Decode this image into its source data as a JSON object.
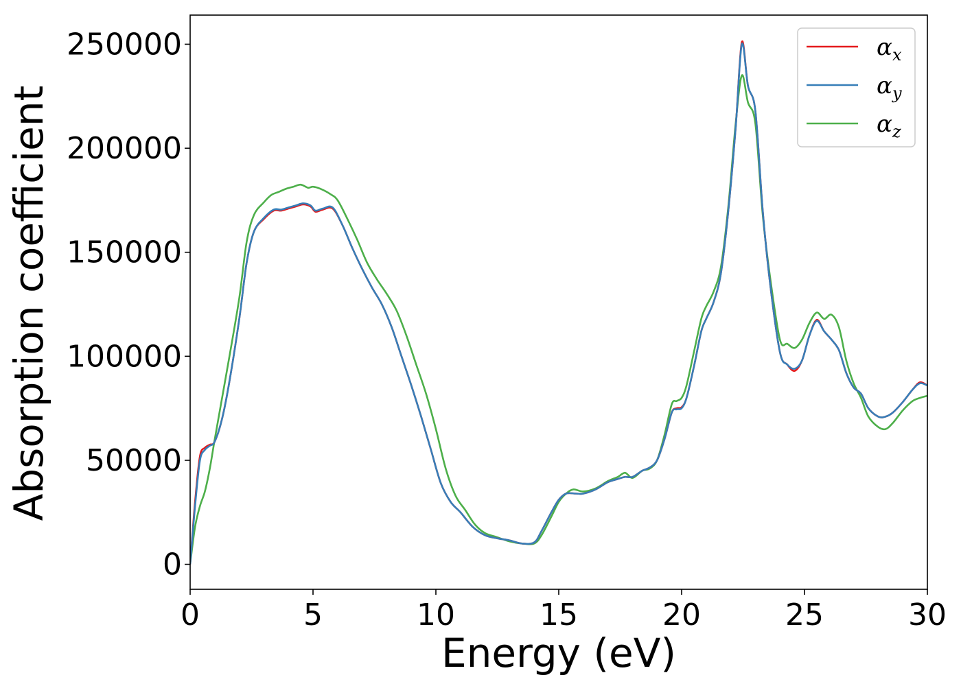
{
  "chart_data": {
    "type": "line",
    "xlabel": "Energy (eV)",
    "ylabel": "Absorption coefficient",
    "xlim": [
      0,
      30
    ],
    "ylim": [
      -12000,
      264000
    ],
    "xticks": [
      0,
      5,
      10,
      15,
      20,
      25,
      30
    ],
    "yticks": [
      0,
      50000,
      100000,
      150000,
      200000,
      250000
    ],
    "grid": false,
    "legend_position": "top-right",
    "series": [
      {
        "name": "α",
        "sub": "x",
        "color": "#e41a1c",
        "x": [
          0,
          0.2,
          0.4,
          0.6,
          0.8,
          1.0,
          1.3,
          1.6,
          2.0,
          2.3,
          2.6,
          3.0,
          3.4,
          3.7,
          4.0,
          4.3,
          4.6,
          4.9,
          5.1,
          5.4,
          5.8,
          6.2,
          6.6,
          7.0,
          7.4,
          7.8,
          8.2,
          8.6,
          9.0,
          9.4,
          9.8,
          10.2,
          10.6,
          11.0,
          11.5,
          12.0,
          12.5,
          13.0,
          13.5,
          14.0,
          14.3,
          14.7,
          15.0,
          15.3,
          15.7,
          16.0,
          16.5,
          17.0,
          17.4,
          17.7,
          18.0,
          18.4,
          18.7,
          19.0,
          19.3,
          19.6,
          19.8,
          20.0,
          20.2,
          20.5,
          20.8,
          21.0,
          21.3,
          21.6,
          21.9,
          22.2,
          22.45,
          22.7,
          23.0,
          23.3,
          23.6,
          24.0,
          24.3,
          24.6,
          24.9,
          25.2,
          25.5,
          25.8,
          26.1,
          26.4,
          26.7,
          27.0,
          27.3,
          27.6,
          28.0,
          28.3,
          28.6,
          29.0,
          29.4,
          29.7,
          30.0
        ],
        "y": [
          0,
          30000,
          52000,
          56000,
          57500,
          59000,
          70000,
          88000,
          118000,
          145000,
          160000,
          166000,
          170000,
          170000,
          171000,
          172000,
          173000,
          172000,
          169500,
          170500,
          171000,
          163000,
          152000,
          142000,
          133000,
          125000,
          114000,
          100000,
          86000,
          71000,
          55000,
          39000,
          30000,
          25000,
          18000,
          14000,
          12500,
          11500,
          10000,
          10500,
          16000,
          25000,
          31000,
          34000,
          34000,
          34000,
          36000,
          39500,
          41000,
          42000,
          42000,
          45000,
          46500,
          50000,
          60000,
          73000,
          75000,
          75500,
          80000,
          95000,
          112000,
          118000,
          126000,
          140000,
          170000,
          210000,
          251000,
          230000,
          218000,
          170000,
          135000,
          102000,
          96000,
          93000,
          98000,
          110000,
          117500,
          112000,
          108000,
          103000,
          92000,
          85000,
          82000,
          75000,
          71000,
          71000,
          73000,
          78000,
          84000,
          87500,
          86000
        ]
      },
      {
        "name": "α",
        "sub": "y",
        "color": "#377eb8",
        "x": [
          0,
          0.2,
          0.4,
          0.6,
          0.8,
          1.0,
          1.3,
          1.6,
          2.0,
          2.3,
          2.6,
          3.0,
          3.4,
          3.7,
          4.0,
          4.3,
          4.6,
          4.9,
          5.1,
          5.4,
          5.8,
          6.2,
          6.6,
          7.0,
          7.4,
          7.8,
          8.2,
          8.6,
          9.0,
          9.4,
          9.8,
          10.2,
          10.6,
          11.0,
          11.5,
          12.0,
          12.5,
          13.0,
          13.5,
          14.0,
          14.3,
          14.7,
          15.0,
          15.3,
          15.7,
          16.0,
          16.5,
          17.0,
          17.4,
          17.7,
          18.0,
          18.4,
          18.7,
          19.0,
          19.3,
          19.6,
          19.8,
          20.0,
          20.2,
          20.5,
          20.8,
          21.0,
          21.3,
          21.6,
          21.9,
          22.2,
          22.45,
          22.7,
          23.0,
          23.3,
          23.6,
          24.0,
          24.3,
          24.6,
          24.9,
          25.2,
          25.5,
          25.8,
          26.1,
          26.4,
          26.7,
          27.0,
          27.3,
          27.6,
          28.0,
          28.3,
          28.6,
          29.0,
          29.4,
          29.7,
          30.0
        ],
        "y": [
          0,
          28000,
          50000,
          55000,
          57000,
          59000,
          70000,
          88000,
          118000,
          145000,
          160000,
          166500,
          170500,
          170500,
          171500,
          172500,
          173500,
          172500,
          170000,
          171000,
          171500,
          163000,
          152000,
          142000,
          133000,
          125000,
          114000,
          100000,
          86000,
          71000,
          55000,
          39000,
          30000,
          25000,
          18000,
          14000,
          12500,
          11500,
          10000,
          10500,
          16000,
          25000,
          31000,
          34000,
          34000,
          34000,
          36000,
          39500,
          41000,
          42000,
          42000,
          45000,
          46500,
          50000,
          60000,
          73000,
          74500,
          75000,
          80000,
          95000,
          112000,
          118000,
          126000,
          140000,
          170000,
          210000,
          250000,
          230000,
          218000,
          170000,
          135000,
          102000,
          96000,
          94000,
          98000,
          110000,
          117000,
          112000,
          108000,
          103000,
          92000,
          85000,
          82000,
          75000,
          71000,
          71000,
          73000,
          78000,
          84000,
          87000,
          86000
        ]
      },
      {
        "name": "α",
        "sub": "z",
        "color": "#4daf4a",
        "x": [
          0,
          0.2,
          0.4,
          0.6,
          0.8,
          1.0,
          1.3,
          1.6,
          2.0,
          2.3,
          2.6,
          3.0,
          3.3,
          3.6,
          3.9,
          4.2,
          4.5,
          4.8,
          5.0,
          5.3,
          5.7,
          6.0,
          6.4,
          6.8,
          7.2,
          7.6,
          8.0,
          8.4,
          8.8,
          9.2,
          9.6,
          10.0,
          10.4,
          10.8,
          11.2,
          11.6,
          12.0,
          12.5,
          13.0,
          13.5,
          14.0,
          14.3,
          14.7,
          15.0,
          15.3,
          15.6,
          16.0,
          16.5,
          17.0,
          17.4,
          17.7,
          18.0,
          18.4,
          18.7,
          19.0,
          19.3,
          19.6,
          19.8,
          20.0,
          20.2,
          20.5,
          20.8,
          21.0,
          21.3,
          21.6,
          21.9,
          22.2,
          22.45,
          22.7,
          23.0,
          23.3,
          23.6,
          24.0,
          24.3,
          24.6,
          24.9,
          25.2,
          25.5,
          25.8,
          26.1,
          26.4,
          26.7,
          27.0,
          27.3,
          27.6,
          28.0,
          28.3,
          28.6,
          29.0,
          29.4,
          29.7,
          30.0
        ],
        "y": [
          0,
          18000,
          28000,
          35000,
          46000,
          60000,
          80000,
          100000,
          128000,
          155000,
          168000,
          174000,
          177500,
          179000,
          180500,
          181500,
          182500,
          181000,
          181500,
          180500,
          178000,
          175000,
          166000,
          156000,
          145000,
          137000,
          130000,
          122000,
          110000,
          96000,
          82000,
          65000,
          46000,
          33000,
          26000,
          19000,
          15000,
          13000,
          11000,
          10000,
          10000,
          14000,
          23000,
          30000,
          34000,
          36000,
          35000,
          36500,
          40000,
          42000,
          44000,
          41500,
          45000,
          46000,
          50000,
          62000,
          77000,
          78500,
          80000,
          86000,
          102000,
          118000,
          124000,
          131000,
          143000,
          172000,
          212000,
          235000,
          222000,
          212000,
          168000,
          138000,
          108000,
          106000,
          104000,
          108000,
          116000,
          121000,
          118000,
          120000,
          114000,
          98000,
          87000,
          80000,
          71000,
          66000,
          65000,
          68000,
          74000,
          78500,
          80000,
          81000
        ]
      }
    ]
  }
}
